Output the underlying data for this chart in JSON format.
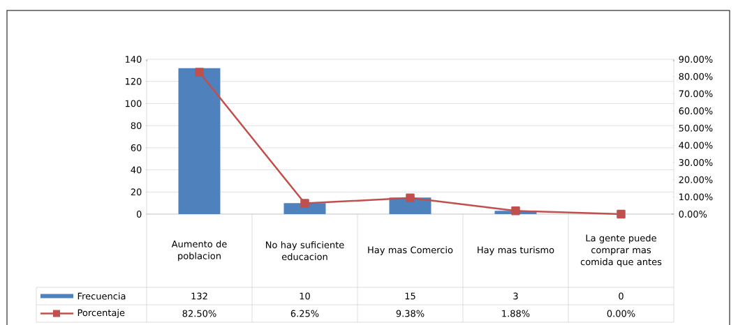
{
  "chart_data": {
    "type": "bar",
    "categories": [
      "Aumento de poblacion",
      "No hay suficiente educacion",
      "Hay mas Comercio",
      "Hay mas turismo",
      "La gente puede comprar mas comida que antes"
    ],
    "series": [
      {
        "name": "Frecuencia",
        "color": "#4f81bd",
        "values": [
          132,
          10,
          15,
          3,
          0
        ],
        "value_labels": [
          "132",
          "10",
          "15",
          "3",
          "0"
        ]
      },
      {
        "name": "Porcentaje",
        "type": "line",
        "axis": "y2",
        "color": "#c0504d",
        "marker": "square",
        "values": [
          82.5,
          6.25,
          9.38,
          1.88,
          0
        ],
        "value_labels": [
          "82.50%",
          "6.25%",
          "9.38%",
          "1.88%",
          "0.00%"
        ]
      }
    ],
    "ylim": [
      0,
      140
    ],
    "yticks": [
      0,
      20,
      40,
      60,
      80,
      100,
      120,
      140
    ],
    "y2lim": [
      0,
      90
    ],
    "y2ticks": [
      {
        "value": 0,
        "label": "0.00%"
      },
      {
        "value": 10,
        "label": "10.00%"
      },
      {
        "value": 20,
        "label": "20.00%"
      },
      {
        "value": 30,
        "label": "30.00%"
      },
      {
        "value": 40,
        "label": "40.00%"
      },
      {
        "value": 50,
        "label": "50.00%"
      },
      {
        "value": 60,
        "label": "60.00%"
      },
      {
        "value": 70,
        "label": "70.00%"
      },
      {
        "value": 80,
        "label": "80.00%"
      },
      {
        "value": 90,
        "label": "90.00%"
      }
    ],
    "grid": "y",
    "legend": "bottom left"
  }
}
